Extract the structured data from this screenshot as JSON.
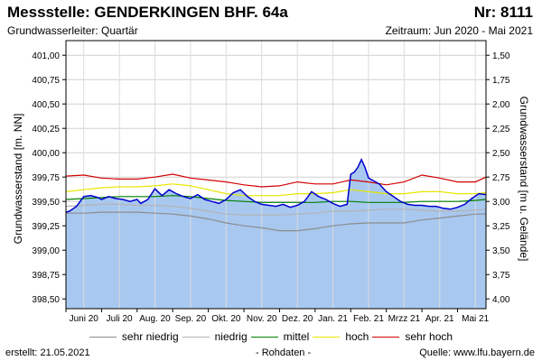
{
  "header": {
    "title": "Messstelle: GENDERKINGEN BHF. 64a",
    "nr": "Nr: 8111",
    "aquifer": "Grundwasserleiter: Quartär",
    "period": "Zeitraum: Jun 2020 - Mai 2021"
  },
  "footer": {
    "created": "erstellt:  21.05.2021",
    "raw": "- Rohdaten -",
    "source": "Quelle: www.lfu.bayern.de"
  },
  "colors": {
    "fill": "#a8c8f0",
    "line": "#0000cc",
    "sehr_niedrig": "#8c8c8c",
    "niedrig": "#b4b4b4",
    "mittel": "#008000",
    "hoch": "#e6e600",
    "sehr_hoch": "#d40000",
    "grid": "#d0d0d0"
  },
  "chart_data": {
    "type": "area",
    "ylabel": "Grundwasserstand [m. NN]",
    "y2label": "Grundwasserstand [m u. Gelände]",
    "ylim": [
      398.4,
      401.15
    ],
    "yticks": [
      "401,00",
      "400,75",
      "400,50",
      "400,25",
      "400,00",
      "399,75",
      "399,50",
      "399,25",
      "399,00",
      "398,75",
      "398,50"
    ],
    "ytick_values": [
      401.0,
      400.75,
      400.5,
      400.25,
      400.0,
      399.75,
      399.5,
      399.25,
      399.0,
      398.75,
      398.5
    ],
    "y2ticks": [
      "1,50",
      "1,75",
      "2,00",
      "2,25",
      "2,50",
      "2,75",
      "3,00",
      "3,25",
      "3,50",
      "3,75",
      "4,00"
    ],
    "months": [
      "Juni 20",
      "Juli 20",
      "Aug. 20",
      "Sep. 20",
      "Okt. 20",
      "Nov. 20",
      "Dez. 20",
      "Jan. 21",
      "Feb. 21",
      "Mrzz 21",
      "Apr. 21",
      "Mai 21"
    ],
    "xlim": [
      0,
      11.8
    ],
    "grid": true,
    "legend_position": "bottom",
    "series": [
      {
        "name": "",
        "key": "measured",
        "x": [
          0,
          0.1,
          0.3,
          0.5,
          0.7,
          0.9,
          1.0,
          1.2,
          1.4,
          1.6,
          1.8,
          2.0,
          2.1,
          2.3,
          2.5,
          2.7,
          2.9,
          3.1,
          3.3,
          3.5,
          3.7,
          3.9,
          4.1,
          4.3,
          4.5,
          4.7,
          4.9,
          5.1,
          5.3,
          5.5,
          5.7,
          5.9,
          6.1,
          6.3,
          6.5,
          6.7,
          6.9,
          7.1,
          7.3,
          7.5,
          7.7,
          7.9,
          8.0,
          8.1,
          8.2,
          8.3,
          8.4,
          8.5,
          8.6,
          8.8,
          9.0,
          9.2,
          9.4,
          9.6,
          9.8,
          10.0,
          10.2,
          10.4,
          10.6,
          10.8,
          11.0,
          11.2,
          11.4,
          11.6,
          11.8
        ],
        "values": [
          399.39,
          399.4,
          399.45,
          399.55,
          399.56,
          399.54,
          399.52,
          399.55,
          399.53,
          399.52,
          399.5,
          399.52,
          399.48,
          399.52,
          399.63,
          399.56,
          399.62,
          399.58,
          399.55,
          399.53,
          399.57,
          399.52,
          399.5,
          399.48,
          399.52,
          399.59,
          399.62,
          399.55,
          399.5,
          399.47,
          399.46,
          399.45,
          399.47,
          399.44,
          399.46,
          399.5,
          399.6,
          399.55,
          399.52,
          399.48,
          399.45,
          399.47,
          399.78,
          399.8,
          399.85,
          399.93,
          399.85,
          399.74,
          399.72,
          399.68,
          399.6,
          399.55,
          399.5,
          399.47,
          399.46,
          399.46,
          399.45,
          399.45,
          399.43,
          399.42,
          399.44,
          399.47,
          399.53,
          399.58,
          399.57
        ]
      },
      {
        "name": "sehr niedrig",
        "key": "sehr_niedrig",
        "x": [
          0,
          0.5,
          1.0,
          1.5,
          2.0,
          2.5,
          3.0,
          3.5,
          4.0,
          4.5,
          5.0,
          5.5,
          6.0,
          6.5,
          7.0,
          7.5,
          8.0,
          8.5,
          9.0,
          9.5,
          10.0,
          10.5,
          11.0,
          11.5,
          11.8
        ],
        "values": [
          399.38,
          399.38,
          399.39,
          399.39,
          399.39,
          399.38,
          399.37,
          399.35,
          399.32,
          399.28,
          399.25,
          399.23,
          399.2,
          399.2,
          399.22,
          399.25,
          399.27,
          399.28,
          399.28,
          399.28,
          399.31,
          399.33,
          399.35,
          399.37,
          399.37
        ]
      },
      {
        "name": "niedrig",
        "key": "niedrig",
        "x": [
          0,
          0.5,
          1.0,
          1.5,
          2.0,
          2.5,
          3.0,
          3.5,
          4.0,
          4.5,
          5.0,
          5.5,
          6.0,
          6.5,
          7.0,
          7.5,
          8.0,
          8.5,
          9.0,
          9.5,
          10.0,
          10.5,
          11.0,
          11.5,
          11.8
        ],
        "values": [
          399.45,
          399.46,
          399.47,
          399.47,
          399.46,
          399.46,
          399.45,
          399.43,
          399.4,
          399.37,
          399.36,
          399.36,
          399.36,
          399.37,
          399.38,
          399.4,
          399.4,
          399.41,
          399.42,
          399.42,
          399.41,
          399.4,
          399.4,
          399.41,
          399.42
        ]
      },
      {
        "name": "mittel",
        "key": "mittel",
        "x": [
          0,
          0.5,
          1.0,
          1.5,
          2.0,
          2.5,
          3.0,
          3.5,
          4.0,
          4.5,
          5.0,
          5.5,
          6.0,
          6.5,
          7.0,
          7.5,
          8.0,
          8.5,
          9.0,
          9.5,
          10.0,
          10.5,
          11.0,
          11.5,
          11.8
        ],
        "values": [
          399.52,
          399.53,
          399.54,
          399.55,
          399.55,
          399.55,
          399.56,
          399.55,
          399.53,
          399.51,
          399.5,
          399.49,
          399.49,
          399.49,
          399.49,
          399.5,
          399.5,
          399.49,
          399.49,
          399.49,
          399.5,
          399.5,
          399.5,
          399.51,
          399.52
        ]
      },
      {
        "name": "hoch",
        "key": "hoch",
        "x": [
          0,
          0.5,
          1.0,
          1.5,
          2.0,
          2.5,
          3.0,
          3.5,
          4.0,
          4.5,
          5.0,
          5.5,
          6.0,
          6.5,
          7.0,
          7.5,
          8.0,
          8.5,
          9.0,
          9.5,
          10.0,
          10.5,
          11.0,
          11.5,
          11.8
        ],
        "values": [
          399.6,
          399.62,
          399.64,
          399.65,
          399.65,
          399.66,
          399.68,
          399.66,
          399.62,
          399.58,
          399.56,
          399.56,
          399.56,
          399.58,
          399.58,
          399.59,
          399.62,
          399.6,
          399.58,
          399.58,
          399.6,
          399.6,
          399.58,
          399.58,
          399.59
        ]
      },
      {
        "name": "sehr hoch",
        "key": "sehr_hoch",
        "x": [
          0,
          0.5,
          1.0,
          1.5,
          2.0,
          2.5,
          3.0,
          3.5,
          4.0,
          4.5,
          5.0,
          5.5,
          6.0,
          6.5,
          7.0,
          7.5,
          8.0,
          8.5,
          9.0,
          9.5,
          10.0,
          10.5,
          11.0,
          11.5,
          11.8
        ],
        "values": [
          399.76,
          399.77,
          399.74,
          399.73,
          399.73,
          399.75,
          399.78,
          399.74,
          399.72,
          399.7,
          399.67,
          399.65,
          399.66,
          399.7,
          399.68,
          399.68,
          399.72,
          399.7,
          399.67,
          399.7,
          399.77,
          399.74,
          399.7,
          399.7,
          399.75
        ]
      }
    ]
  }
}
